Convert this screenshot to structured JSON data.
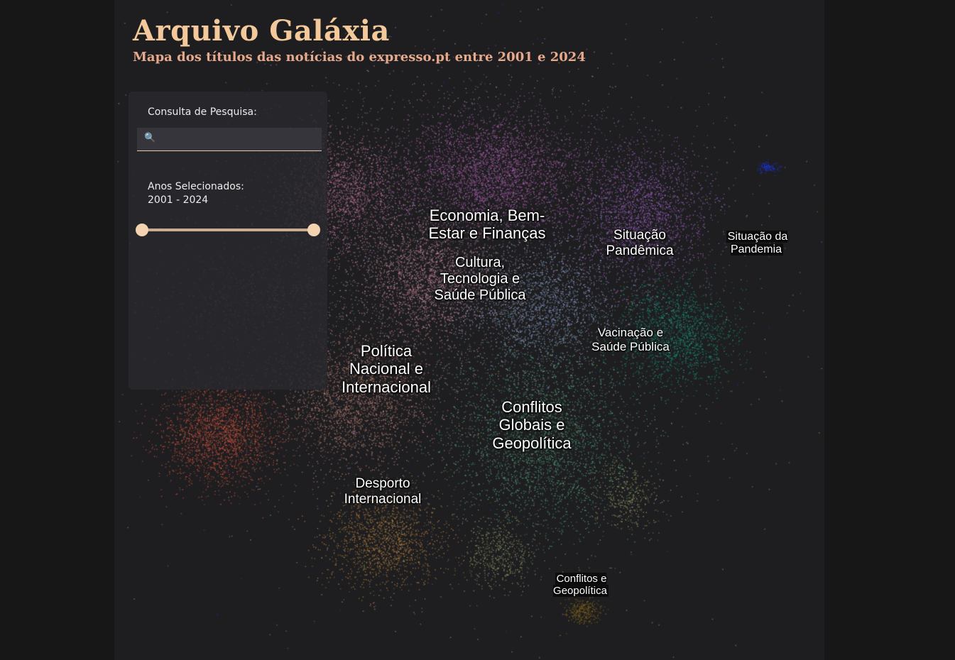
{
  "header": {
    "title": "Arquivo Galáxia",
    "subtitle": "Mapa dos títulos das notícias do expresso.pt entre 2001 e 2024"
  },
  "search": {
    "label": "Consulta de Pesquisa:",
    "icon": "search-icon",
    "value": "",
    "placeholder": ""
  },
  "years": {
    "label": "Anos Selecionados:",
    "range_text": "2001 - 2024",
    "min": 2001,
    "max": 2024,
    "selected_start": 2001,
    "selected_end": 2024
  },
  "clusters": [
    {
      "label": "Economia, Bem-\nEstar e Finanças",
      "color": "#b35fb3"
    },
    {
      "label": "Cultura,\nTecnologia e\nSaúde Pública",
      "color": "#d48fa0"
    },
    {
      "label": "Situação\nPandêmica",
      "color": "#a865d0"
    },
    {
      "label": "Situação da\nPandemia",
      "color": "#1c36e0"
    },
    {
      "label": "Vacinação e\nSaúde Pública",
      "color": "#1a9a7e"
    },
    {
      "label": "Política\nNacional e\nInternacional",
      "color": "#c9877a"
    },
    {
      "label": "Conflitos\nGlobais e\nGeopolítica",
      "color": "#58a983"
    },
    {
      "label": "Desporto\nInternacional",
      "color": "#c68b45"
    },
    {
      "label": "Conflitos e\nGeopolítica",
      "color": "#8a6a1a"
    }
  ],
  "colors": {
    "background": "#1e1e20",
    "title": "#f3c89a",
    "subtitle": "#e6a98c",
    "red_cluster": "#d8553f",
    "periwinkle": "#8fa4cf",
    "olive": "#9ea56a"
  }
}
